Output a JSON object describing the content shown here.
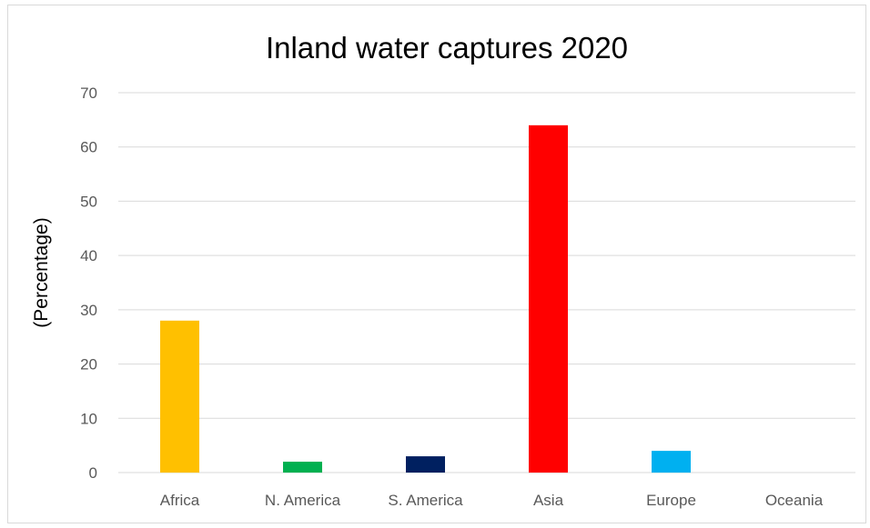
{
  "chart_data": {
    "type": "bar",
    "title": "Inland water captures 2020",
    "xlabel": "",
    "ylabel": "(Percentage)",
    "categories": [
      "Africa",
      "N. America",
      "S. America",
      "Asia",
      "Europe",
      "Oceania"
    ],
    "values": [
      28,
      2,
      3,
      64,
      4,
      0
    ],
    "colors": [
      "#FFC000",
      "#00B050",
      "#002060",
      "#FF0000",
      "#00B0F0",
      "#7F7F7F"
    ],
    "ylim": [
      0,
      70
    ],
    "yticks": [
      0,
      10,
      20,
      30,
      40,
      50,
      60,
      70
    ],
    "grid": true,
    "legend": "none"
  }
}
